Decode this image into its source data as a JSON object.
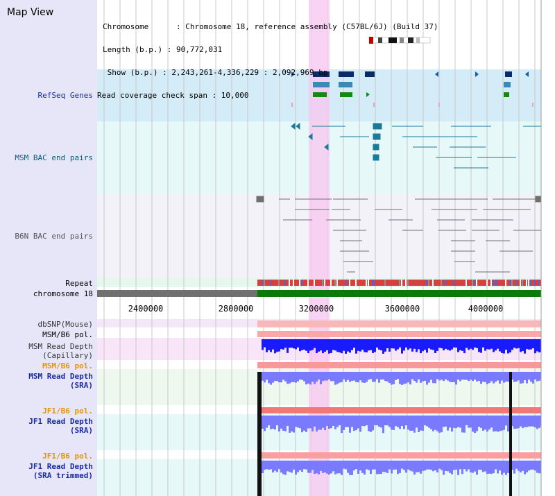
{
  "sidebar": {
    "title": "Map View",
    "tracks": [
      {
        "label": "RefSeq Genes",
        "color": "#1a2ba0"
      },
      {
        "label": "MSM BAC end pairs",
        "color": "#0a5a78"
      },
      {
        "label": "B6N BAC end pairs",
        "color": "#555555"
      },
      {
        "label": "Repeat",
        "color": "#000000"
      },
      {
        "label": "chromosome 18",
        "color": "#000000"
      },
      {
        "label": "dbSNP(Mouse)",
        "color": "#333333"
      },
      {
        "label": "MSM/B6 pol.",
        "color": "#000000"
      },
      {
        "label": "MSM Read Depth\n(Capillary)",
        "color": "#333333"
      },
      {
        "label": "MSM/B6 pol.",
        "color": "#e69500"
      },
      {
        "label": "MSM Read Depth\n(SRA)",
        "color": "#1a2ba0"
      },
      {
        "label": "JF1/B6 pol.",
        "color": "#e69500"
      },
      {
        "label": "JF1 Read Depth\n(SRA)",
        "color": "#1a2ba0"
      },
      {
        "label": "JF1/B6 pol.",
        "color": "#e69500"
      },
      {
        "label": "JF1 Read Depth\n(SRA trimmed)",
        "color": "#1a2ba0"
      }
    ]
  },
  "info": {
    "line1": "Chromosome      : Chromosome 18, reference assembly (C57BL/6J) (Build 37)",
    "line2": "Length (b.p.) : 90,772,031",
    "line3": " Show (b.p.) : 2,243,261-4,336,229 : 2,092,969 bp",
    "line4": "Read coverage check span : 10,000"
  },
  "scale": {
    "ticks": [
      "2400000",
      "2800000",
      "3200000",
      "3600000",
      "4000000"
    ]
  },
  "colors": {
    "gene_dark": "#0a2a6a",
    "gene_mid": "#3a8ab8",
    "gene_green": "#128a12",
    "msm_bac": "#1a7a9a",
    "b6n_bac": "#707070",
    "chromosome": "#0a7a0a",
    "depth_msm_cap": "#1a1aff",
    "depth_sra": "#7a7aff",
    "pol": "#ff7a7a",
    "highlight": "#f8c8f0"
  }
}
